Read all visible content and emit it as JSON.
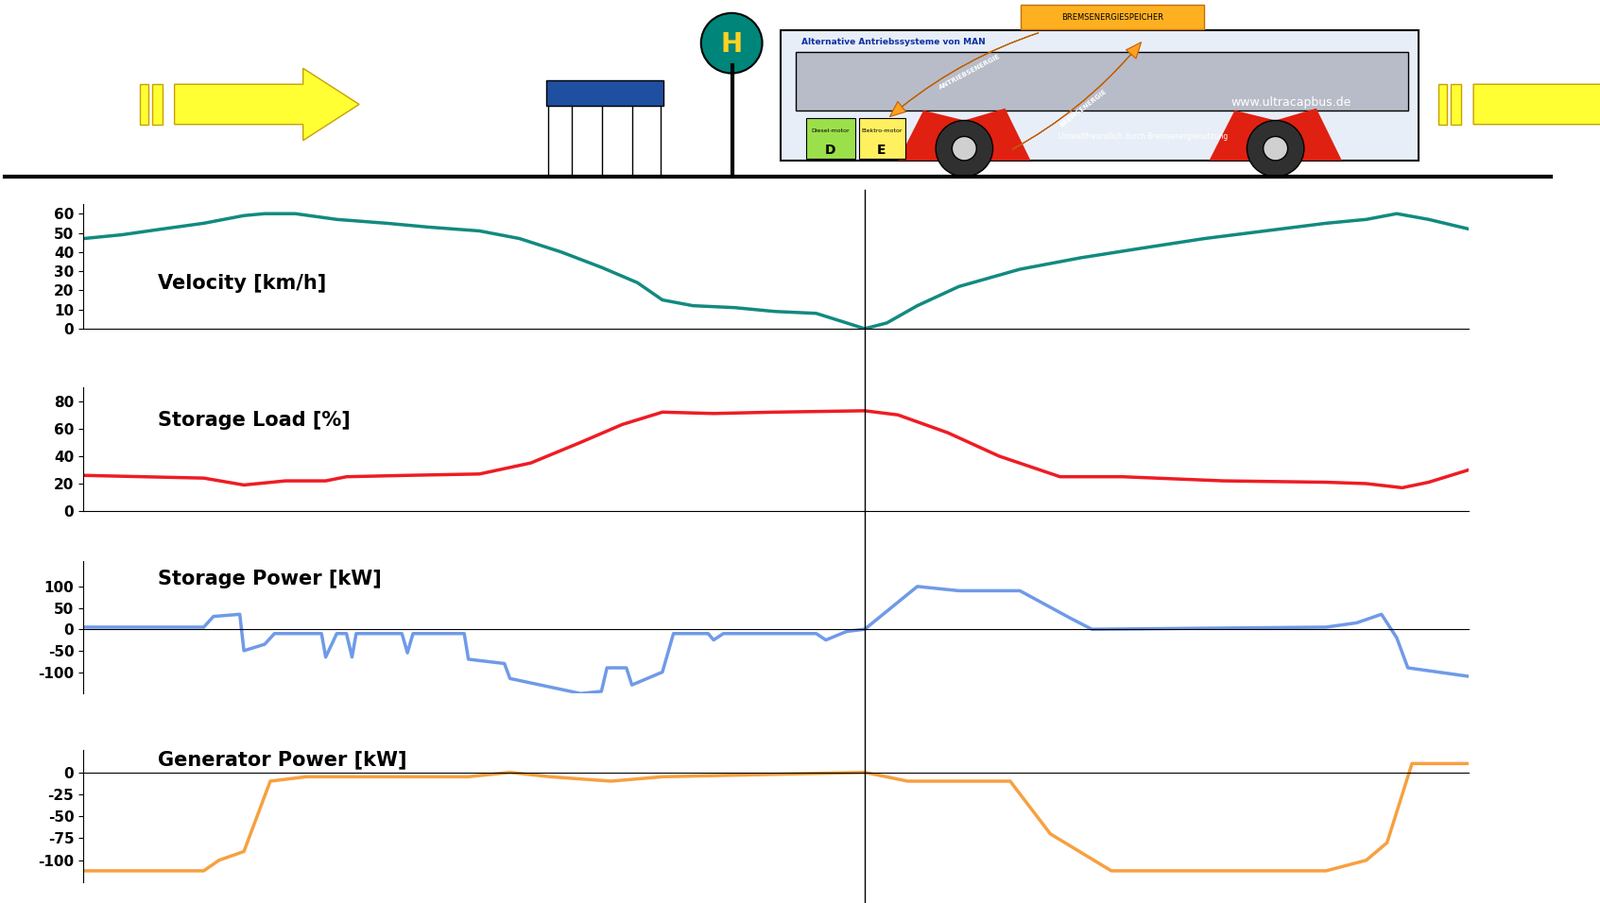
{
  "stop_x": 56.4,
  "illustration": {
    "stop_sign": "H",
    "bus_banner": "Alternative Antriebssysteme von MAN",
    "roof_box": "BREMSENERGIESPEICHER",
    "website": "www.ultracapbus.de",
    "slogan": "Umweltfreundlich durch Bremsenergienutzung",
    "engine_label": "Diesel-motor",
    "motor_label": "Elektro-motor",
    "engine_letter": "D",
    "motor_letter": "E",
    "drive_arrow": "ANTRIEBSENERGIE",
    "brake_arrow": "BREMSENERGIE"
  },
  "chart_data": [
    {
      "type": "line",
      "title": "Velocity [km/h]",
      "color": "#128a80",
      "xlim": [
        0,
        100
      ],
      "ylim": [
        0,
        65
      ],
      "yticks": [
        0,
        10,
        20,
        30,
        40,
        50,
        60
      ],
      "tick_labels": "y",
      "x": [
        0,
        2.8,
        5.7,
        8.7,
        11.6,
        13.1,
        15.3,
        18.3,
        21.9,
        24.9,
        28.6,
        31.5,
        34.5,
        37.4,
        40.0,
        41.8,
        44.0,
        47.0,
        49.9,
        52.9,
        55.1,
        56.4,
        58.0,
        60.2,
        63.2,
        67.6,
        72.0,
        76.4,
        80.9,
        85.3,
        89.7,
        92.6,
        94.8,
        97.1,
        100
      ],
      "values": [
        47,
        49,
        52,
        55,
        59,
        60,
        60,
        57,
        55,
        53,
        51,
        47,
        40,
        32,
        24,
        15,
        12,
        11,
        9,
        8,
        3,
        0,
        3,
        12,
        22,
        31,
        37,
        42,
        47,
        51,
        55,
        57,
        60,
        57,
        52
      ]
    },
    {
      "type": "line",
      "title": "Storage Load [%]",
      "color": "#ee1c24",
      "xlim": [
        0,
        100
      ],
      "ylim": [
        0,
        90
      ],
      "yticks": [
        0,
        20,
        40,
        60,
        80
      ],
      "tick_labels": "y",
      "x": [
        0,
        8.7,
        11.6,
        14.6,
        17.5,
        19.0,
        23.4,
        28.6,
        32.3,
        35.9,
        38.9,
        41.8,
        45.5,
        49.9,
        56.4,
        58.8,
        62.4,
        66.1,
        70.5,
        75.0,
        82.3,
        89.7,
        92.6,
        95.2,
        97.1,
        100
      ],
      "values": [
        26,
        24,
        19,
        22,
        22,
        25,
        26,
        27,
        35,
        50,
        63,
        72,
        71,
        72,
        73,
        70,
        57,
        40,
        25,
        25,
        22,
        21,
        20,
        17,
        21,
        30
      ]
    },
    {
      "type": "line",
      "title": "Storage Power [kW]",
      "color": "#6f9ae8",
      "xlim": [
        0,
        100
      ],
      "ylim": [
        -150,
        160
      ],
      "yticks": [
        -100,
        -50,
        0,
        50,
        100
      ],
      "tick_labels": "y",
      "x": [
        0,
        8.7,
        9.4,
        11.3,
        11.6,
        13.1,
        13.8,
        17.2,
        17.5,
        18.3,
        19.0,
        19.4,
        19.7,
        23.0,
        23.4,
        23.8,
        27.5,
        27.8,
        30.4,
        30.8,
        35.9,
        37.4,
        37.8,
        39.2,
        39.6,
        41.8,
        42.6,
        45.1,
        45.5,
        46.2,
        52.9,
        53.6,
        55.1,
        56.4,
        60.2,
        63.2,
        67.6,
        71.3,
        72.8,
        89.7,
        91.9,
        93.7,
        94.8,
        95.6,
        100
      ],
      "values": [
        5,
        5,
        30,
        35,
        -50,
        -35,
        -10,
        -10,
        -65,
        -10,
        -10,
        -65,
        -10,
        -10,
        -55,
        -10,
        -10,
        -70,
        -80,
        -115,
        -150,
        -145,
        -90,
        -90,
        -130,
        -100,
        -10,
        -10,
        -25,
        -10,
        -10,
        -25,
        -5,
        0,
        100,
        90,
        90,
        25,
        0,
        5,
        15,
        35,
        -20,
        -90,
        -110
      ]
    },
    {
      "type": "line",
      "title": "Generator Power [kW]",
      "color": "#f7a040",
      "xlim": [
        0,
        100
      ],
      "ylim": [
        -125,
        25
      ],
      "yticks": [
        -100,
        -75,
        -50,
        -25,
        0
      ],
      "tick_labels": "y",
      "x": [
        0,
        8.7,
        9.8,
        11.6,
        13.5,
        16.1,
        27.8,
        30.8,
        33.7,
        38.1,
        41.8,
        56.4,
        59.5,
        66.9,
        69.8,
        74.2,
        82.3,
        89.7,
        92.6,
        94.1,
        95.9,
        100
      ],
      "values": [
        -112,
        -112,
        -100,
        -90,
        -10,
        -5,
        -5,
        0,
        -5,
        -10,
        -5,
        0,
        -10,
        -10,
        -70,
        -112,
        -112,
        -112,
        -100,
        -80,
        10,
        10
      ]
    }
  ]
}
